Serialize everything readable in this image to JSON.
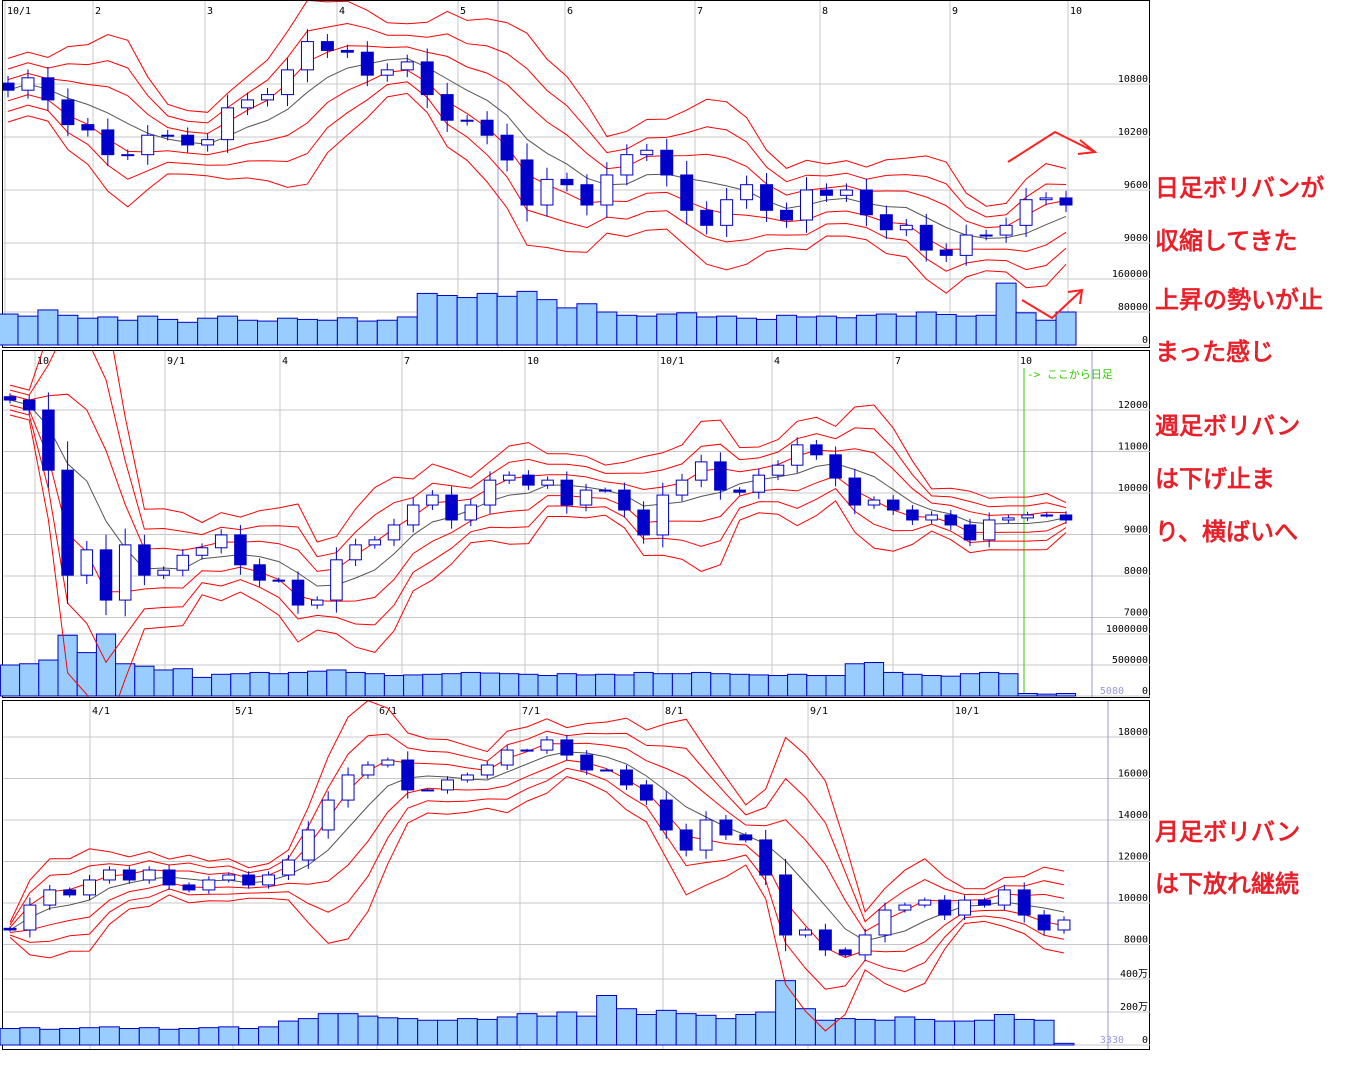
{
  "colors": {
    "band": "#ff0000",
    "middle_line": "#555555",
    "candle": "#0000c8",
    "volume_fill": "#99ccff",
    "grid": "#c8c8c8",
    "annotation": "#e8202a",
    "daily_marker": "#33cc00",
    "cursor_line": "#9999dd"
  },
  "annotations": {
    "daily": [
      "日足ボリバンが",
      "収縮してきた",
      "上昇の勢いが止",
      "まった感じ"
    ],
    "weekly": [
      "週足ボリバン",
      "は下げ止ま",
      "り、横ばいへ"
    ],
    "monthly": [
      "月足ボリバン",
      "は下放れ継続"
    ]
  },
  "chart_data": [
    {
      "type": "candlestick",
      "title": "",
      "timeframe": "daily",
      "indicator": "bollinger bands (±1σ, ±2σ, ±3σ)",
      "x_tick_labels": [
        "10/1",
        "2",
        "3",
        "4",
        "5",
        "6",
        "7",
        "8",
        "9",
        "10"
      ],
      "y_ticks": [
        10800,
        10200,
        9600,
        9000
      ],
      "y_tick_labels": [
        "10800",
        "10200",
        "9600",
        "9000"
      ],
      "volume_ticks": [
        160000,
        80000,
        0
      ],
      "volume_tick_labels": [
        "160000",
        "80000",
        "0"
      ],
      "close": [
        10730,
        10870,
        10620,
        10340,
        10280,
        10000,
        10000,
        10220,
        10220,
        10110,
        10170,
        10530,
        10620,
        10680,
        10960,
        11280,
        11180,
        11160,
        10900,
        10960,
        11050,
        10680,
        10390,
        10390,
        10220,
        9940,
        9430,
        9720,
        9660,
        9430,
        9770,
        10000,
        10050,
        9770,
        9370,
        9200,
        9490,
        9660,
        9370,
        9260,
        9600,
        9540,
        9600,
        9320,
        9150,
        9200,
        8920,
        8860,
        9090,
        9090,
        9200,
        9490,
        9510,
        9430
      ],
      "volume": [
        75000,
        70000,
        85000,
        72000,
        65000,
        68000,
        60000,
        70000,
        62000,
        55000,
        65000,
        70000,
        60000,
        58000,
        65000,
        62000,
        60000,
        66000,
        58000,
        60000,
        68000,
        125000,
        120000,
        115000,
        125000,
        118000,
        130000,
        110000,
        90000,
        100000,
        80000,
        72000,
        70000,
        75000,
        78000,
        68000,
        70000,
        65000,
        62000,
        72000,
        68000,
        70000,
        66000,
        72000,
        75000,
        70000,
        80000,
        74000,
        70000,
        72000,
        150000,
        78000,
        60000,
        80000
      ],
      "grid": true
    },
    {
      "type": "candlestick",
      "title": "",
      "timeframe": "weekly",
      "indicator": "bollinger bands (±1σ, ±2σ, ±3σ)",
      "x_tick_labels": [
        "10",
        "9/1",
        "4",
        "7",
        "10",
        "10/1",
        "4",
        "7",
        "10"
      ],
      "y_ticks": [
        12000,
        11000,
        10000,
        9000,
        8000,
        7000
      ],
      "y_tick_labels": [
        "12000",
        "11000",
        "10000",
        "9000",
        "8000",
        "7000"
      ],
      "volume_ticks": [
        1000000,
        500000,
        0
      ],
      "volume_tick_labels": [
        "1000000",
        "500000",
        "0"
      ],
      "marker_label": "-> ここから日足",
      "last_volume_label": "5080",
      "close": [
        12240,
        12000,
        10550,
        8020,
        8630,
        7420,
        8750,
        8020,
        8140,
        8500,
        8680,
        8990,
        8270,
        7900,
        7900,
        7300,
        7420,
        8390,
        8750,
        8870,
        9230,
        9710,
        9950,
        9350,
        9710,
        10310,
        10430,
        10190,
        10310,
        9710,
        10070,
        10070,
        9590,
        8990,
        9950,
        10310,
        10750,
        10070,
        10020,
        10430,
        10670,
        11160,
        10920,
        10360,
        9710,
        9830,
        9590,
        9350,
        9470,
        9230,
        8870,
        9350,
        9400,
        9470,
        9470,
        9350
      ],
      "volume": [
        500000,
        520000,
        580000,
        980000,
        700000,
        1000000,
        520000,
        480000,
        420000,
        440000,
        300000,
        350000,
        360000,
        380000,
        360000,
        380000,
        400000,
        420000,
        380000,
        360000,
        330000,
        340000,
        350000,
        360000,
        380000,
        370000,
        360000,
        350000,
        330000,
        360000,
        340000,
        350000,
        340000,
        380000,
        360000,
        360000,
        380000,
        360000,
        350000,
        340000,
        330000,
        350000,
        330000,
        330000,
        520000,
        540000,
        380000,
        350000,
        330000,
        320000,
        360000,
        380000,
        360000,
        40000,
        30000,
        40000
      ],
      "grid": true
    },
    {
      "type": "candlestick",
      "title": "",
      "timeframe": "monthly",
      "indicator": "bollinger bands (±1σ, ±2σ, ±3σ)",
      "x_tick_labels": [
        "4/1",
        "5/1",
        "6/1",
        "7/1",
        "8/1",
        "9/1",
        "10/1"
      ],
      "y_ticks": [
        18000,
        16000,
        14000,
        12000,
        10000,
        8000
      ],
      "y_tick_labels": [
        "18000",
        "16000",
        "14000",
        "12000",
        "10000",
        "8000"
      ],
      "volume_ticks": [
        4000000,
        2000000,
        0
      ],
      "volume_tick_labels": [
        "400万",
        "200万",
        "0"
      ],
      "last_volume_label": "3330",
      "close": [
        8700,
        9900,
        10630,
        10390,
        11110,
        11590,
        11110,
        11590,
        10870,
        10630,
        11110,
        11350,
        10870,
        11350,
        12070,
        13520,
        14960,
        16170,
        16650,
        16890,
        15450,
        15450,
        15930,
        16170,
        16650,
        17370,
        17370,
        17860,
        17130,
        16410,
        16410,
        15690,
        14960,
        13520,
        12550,
        14000,
        13280,
        13040,
        11350,
        8460,
        8700,
        7740,
        7500,
        8460,
        9660,
        9900,
        10140,
        9420,
        10140,
        9900,
        10630,
        9420,
        8700,
        9180
      ],
      "volume": [
        1000000,
        1050000,
        950000,
        1000000,
        1050000,
        1100000,
        1000000,
        1050000,
        950000,
        1000000,
        1050000,
        1100000,
        1000000,
        1100000,
        1450000,
        1600000,
        1900000,
        1900000,
        1750000,
        1650000,
        1600000,
        1500000,
        1500000,
        1600000,
        1550000,
        1700000,
        1900000,
        1750000,
        2000000,
        1750000,
        3000000,
        2200000,
        1850000,
        2100000,
        1900000,
        1800000,
        1600000,
        1850000,
        2000000,
        3900000,
        2200000,
        1500000,
        1600000,
        1550000,
        1500000,
        1700000,
        1550000,
        1450000,
        1450000,
        1500000,
        1850000,
        1550000,
        1500000,
        100000
      ],
      "grid": true
    }
  ]
}
